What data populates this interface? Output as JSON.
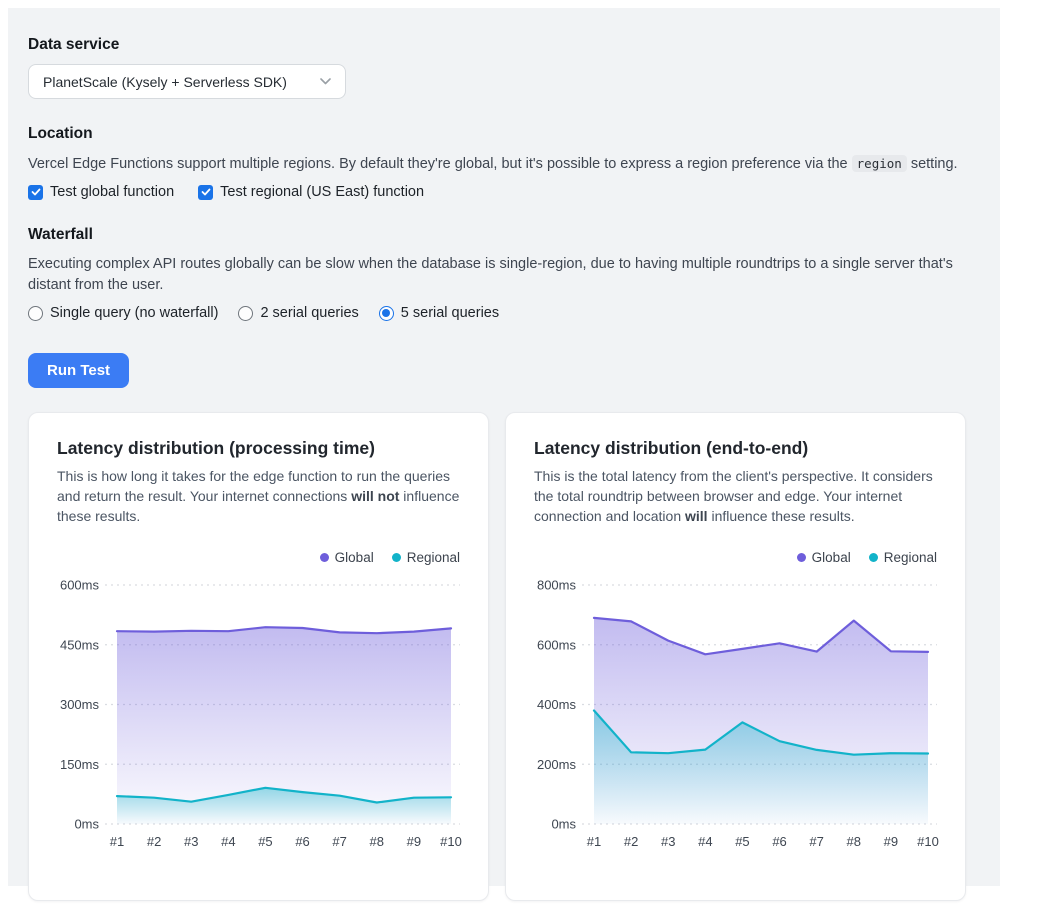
{
  "data_service": {
    "label": "Data service",
    "selected_option": "PlanetScale (Kysely + Serverless SDK)"
  },
  "location": {
    "heading": "Location",
    "description_segments": [
      {
        "text": "Vercel Edge Functions support multiple regions. By default they're global, but it's possible to express a region preference via the "
      },
      {
        "text": "region",
        "code": true
      },
      {
        "text": " setting."
      }
    ],
    "checkboxes": [
      {
        "label": "Test global function",
        "checked": true
      },
      {
        "label": "Test regional (US East) function",
        "checked": true
      }
    ]
  },
  "waterfall": {
    "heading": "Waterfall",
    "description": "Executing complex API routes globally can be slow when the database is single-region, due to having multiple roundtrips to a single server that's distant from the user.",
    "radios": [
      {
        "label": "Single query (no waterfall)",
        "selected": false
      },
      {
        "label": "2 serial queries",
        "selected": false
      },
      {
        "label": "5 serial queries",
        "selected": true
      }
    ]
  },
  "run_button": {
    "label": "Run Test"
  },
  "colors": {
    "control_blue": "#1a73e8",
    "button_blue": "#3b7cf4",
    "global_series": "#6e5edb",
    "regional_series": "#12b3c9",
    "grid_line": "#d9dce1",
    "tick_text": "#3e4651"
  },
  "chart_data": [
    {
      "type": "area",
      "title": "Latency distribution (processing time)",
      "description_segments": [
        {
          "text": "This is how long it takes for the edge function to run the queries and return the result. Your internet connections "
        },
        {
          "text": "will not",
          "bold": true
        },
        {
          "text": " influence these results."
        }
      ],
      "legend": [
        "Global",
        "Regional"
      ],
      "legend_position": "top-right",
      "grid": "dashed-horizontal",
      "categories": [
        "#1",
        "#2",
        "#3",
        "#4",
        "#5",
        "#6",
        "#7",
        "#8",
        "#9",
        "#10"
      ],
      "ymax": 600,
      "yticks": [
        0,
        150,
        300,
        450,
        600
      ],
      "ytick_labels": [
        "0ms",
        "150ms",
        "300ms",
        "450ms",
        "600ms"
      ],
      "series": [
        {
          "name": "Global",
          "color_key": "global_series",
          "values": [
            484,
            483,
            485,
            484,
            494,
            492,
            481,
            479,
            483,
            491
          ]
        },
        {
          "name": "Regional",
          "color_key": "regional_series",
          "values": [
            70,
            66,
            56,
            73,
            91,
            80,
            71,
            54,
            66,
            67
          ]
        }
      ]
    },
    {
      "type": "area",
      "title": "Latency distribution (end-to-end)",
      "description_segments": [
        {
          "text": "This is the total latency from the client's perspective. It considers the total roundtrip between browser and edge. Your internet connection and location "
        },
        {
          "text": "will",
          "bold": true
        },
        {
          "text": " influence these results."
        }
      ],
      "legend": [
        "Global",
        "Regional"
      ],
      "legend_position": "top-right",
      "grid": "dashed-horizontal",
      "categories": [
        "#1",
        "#2",
        "#3",
        "#4",
        "#5",
        "#6",
        "#7",
        "#8",
        "#9",
        "#10"
      ],
      "ymax": 800,
      "yticks": [
        0,
        200,
        400,
        600,
        800
      ],
      "ytick_labels": [
        "0ms",
        "200ms",
        "400ms",
        "600ms",
        "800ms"
      ],
      "series": [
        {
          "name": "Global",
          "color_key": "global_series",
          "values": [
            690,
            678,
            614,
            568,
            586,
            605,
            577,
            681,
            578,
            576
          ]
        },
        {
          "name": "Regional",
          "color_key": "regional_series",
          "values": [
            380,
            240,
            237,
            249,
            340,
            277,
            248,
            232,
            237,
            236
          ]
        }
      ]
    }
  ]
}
